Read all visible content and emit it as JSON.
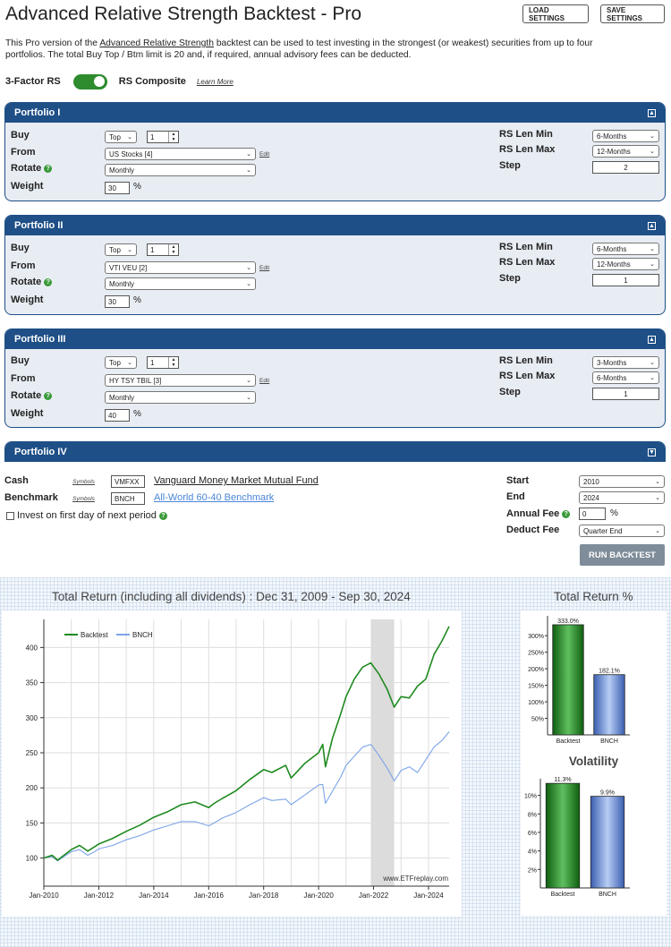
{
  "header": {
    "title": "Advanced Relative Strength Backtest - Pro",
    "load_label": "LOAD SETTINGS",
    "save_label": "SAVE SETTINGS"
  },
  "intro": {
    "line1_a": "This Pro version of the ",
    "link": "Advanced Relative Strength",
    "line1_b": " backtest can be used to test investing in the strongest (or weakest) securities from up to four",
    "line2": "portfolios. The total Buy Top / Btm limit is 20 and, if required, annual advisory fees can be deducted."
  },
  "rs_mode": {
    "left_label": "3-Factor RS",
    "right_label": "RS Composite",
    "learn_more": "Learn More",
    "toggle_on": true
  },
  "labels": {
    "buy": "Buy",
    "from": "From",
    "rotate": "Rotate",
    "weight": "Weight",
    "rs_len_min": "RS Len Min",
    "rs_len_max": "RS Len Max",
    "step": "Step",
    "edit": "Edit",
    "percent": "%",
    "help": "?"
  },
  "portfolios": [
    {
      "name": "Portfolio I",
      "buy_mode": "Top",
      "buy_count": "1",
      "from": "US Stocks [4]",
      "rotate": "Monthly",
      "weight": "30",
      "rs_min": "6-Months",
      "rs_max": "12-Months",
      "step": "2"
    },
    {
      "name": "Portfolio II",
      "buy_mode": "Top",
      "buy_count": "1",
      "from": "VTI VEU [2]",
      "rotate": "Monthly",
      "weight": "30",
      "rs_min": "6-Months",
      "rs_max": "12-Months",
      "step": "1"
    },
    {
      "name": "Portfolio III",
      "buy_mode": "Top",
      "buy_count": "1",
      "from": "HY TSY TBIL [3]",
      "rotate": "Monthly",
      "weight": "40",
      "rs_min": "3-Months",
      "rs_max": "6-Months",
      "step": "1"
    },
    {
      "name": "Portfolio IV"
    }
  ],
  "settings": {
    "cash_label": "Cash",
    "cash_symbols": "Symbols",
    "cash_ticker": "VMFXX",
    "cash_name": "Vanguard Money Market Mutual Fund",
    "bench_label": "Benchmark",
    "bench_symbols": "Symbols",
    "bench_ticker": "BNCH",
    "bench_name": "All-World 60-40 Benchmark",
    "invest_label": "Invest on first day of next period",
    "start_label": "Start",
    "start_value": "2010",
    "end_label": "End",
    "end_value": "2024",
    "fee_label": "Annual Fee",
    "fee_value": "0",
    "fee_unit": "%",
    "deduct_label": "Deduct Fee",
    "deduct_value": "Quarter End",
    "run_label": "RUN BACKTEST"
  },
  "colors": {
    "backtest": "#1f8a1f",
    "bench": "#7ba4e8",
    "accent": "#1e4f86"
  },
  "chart_data": [
    {
      "type": "line",
      "title": "Total Return (including all dividends) : Dec 31, 2009 - Sep 30, 2024",
      "x_ticks": [
        "Jan-2010",
        "Jan-2012",
        "Jan-2014",
        "Jan-2016",
        "Jan-2018",
        "Jan-2020",
        "Jan-2022",
        "Jan-2024"
      ],
      "y_ticks": [
        100,
        150,
        200,
        250,
        300,
        350,
        400
      ],
      "ylim": [
        60,
        440
      ],
      "xlim": [
        2010.0,
        2024.75
      ],
      "shaded_period": [
        2021.9,
        2022.75
      ],
      "watermark": "www.ETFreplay.com",
      "series": [
        {
          "name": "Backtest",
          "x": [
            2010.0,
            2010.3,
            2010.5,
            2010.8,
            2011.0,
            2011.3,
            2011.6,
            2011.8,
            2012.0,
            2012.5,
            2013.0,
            2013.5,
            2014.0,
            2014.5,
            2015.0,
            2015.5,
            2016.0,
            2016.2,
            2016.5,
            2017.0,
            2017.5,
            2018.0,
            2018.3,
            2018.8,
            2019.0,
            2019.5,
            2020.0,
            2020.15,
            2020.25,
            2020.5,
            2020.8,
            2021.0,
            2021.3,
            2021.6,
            2021.9,
            2022.2,
            2022.5,
            2022.75,
            2023.0,
            2023.3,
            2023.6,
            2023.9,
            2024.2,
            2024.5,
            2024.75
          ],
          "values": [
            100,
            104,
            97,
            106,
            112,
            118,
            110,
            115,
            120,
            128,
            138,
            147,
            158,
            166,
            176,
            180,
            172,
            178,
            185,
            196,
            212,
            226,
            222,
            232,
            214,
            235,
            250,
            262,
            230,
            270,
            305,
            330,
            355,
            372,
            378,
            362,
            340,
            315,
            330,
            328,
            345,
            355,
            390,
            410,
            430
          ]
        },
        {
          "name": "BNCH",
          "x": [
            2010.0,
            2010.3,
            2010.5,
            2010.8,
            2011.0,
            2011.3,
            2011.6,
            2011.8,
            2012.0,
            2012.5,
            2013.0,
            2013.5,
            2014.0,
            2014.5,
            2015.0,
            2015.5,
            2016.0,
            2016.2,
            2016.5,
            2017.0,
            2017.5,
            2018.0,
            2018.3,
            2018.8,
            2019.0,
            2019.5,
            2020.0,
            2020.15,
            2020.25,
            2020.5,
            2020.8,
            2021.0,
            2021.3,
            2021.6,
            2021.9,
            2022.2,
            2022.5,
            2022.75,
            2023.0,
            2023.3,
            2023.6,
            2023.9,
            2024.2,
            2024.5,
            2024.75
          ],
          "values": [
            100,
            102,
            96,
            104,
            109,
            112,
            104,
            108,
            113,
            118,
            126,
            132,
            140,
            146,
            152,
            152,
            146,
            150,
            157,
            165,
            176,
            186,
            182,
            184,
            176,
            190,
            204,
            205,
            178,
            195,
            215,
            232,
            245,
            258,
            262,
            246,
            228,
            210,
            225,
            230,
            222,
            240,
            258,
            268,
            280
          ]
        }
      ]
    },
    {
      "type": "bar",
      "title": "Total Return %",
      "categories": [
        "Backtest",
        "BNCH"
      ],
      "values": [
        333.0,
        182.1
      ],
      "value_labels": [
        "333.0%",
        "182.1%"
      ],
      "y_ticks": [
        "50%",
        "100%",
        "150%",
        "200%",
        "250%",
        "300%"
      ],
      "ylim": [
        0,
        360
      ]
    },
    {
      "type": "bar",
      "title": "Volatility",
      "categories": [
        "Backtest",
        "BNCH"
      ],
      "values": [
        11.3,
        9.9
      ],
      "value_labels": [
        "11.3%",
        "9.9%"
      ],
      "y_ticks": [
        "2%",
        "4%",
        "6%",
        "8%",
        "10%"
      ],
      "ylim": [
        0,
        11.8
      ]
    }
  ]
}
